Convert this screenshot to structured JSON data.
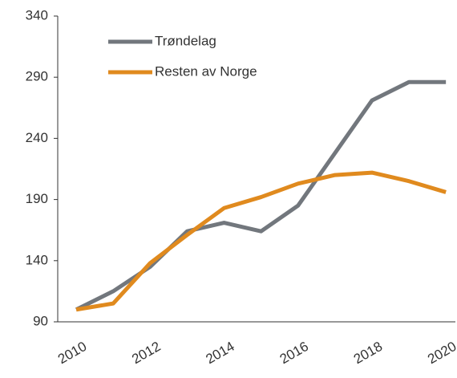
{
  "chart_data": {
    "type": "line",
    "x": [
      2010,
      2011,
      2012,
      2013,
      2014,
      2015,
      2016,
      2017,
      2018,
      2019,
      2020
    ],
    "series": [
      {
        "name": "Trøndelag",
        "color": "#72777d",
        "values": [
          100,
          115,
          135,
          164,
          171,
          164,
          185,
          228,
          271,
          286,
          286
        ]
      },
      {
        "name": "Resten av Norge",
        "color": "#e08a1e",
        "values": [
          100,
          105,
          138,
          161,
          183,
          192,
          203,
          210,
          212,
          205,
          196
        ]
      }
    ],
    "xlim": [
      2009.5,
      2020.3
    ],
    "xticks": [
      2010,
      2012,
      2014,
      2016,
      2018,
      2020
    ],
    "ylim": [
      90,
      340
    ],
    "yticks": [
      90,
      140,
      190,
      240,
      290,
      340
    ],
    "grid": false,
    "legend": "upper left"
  }
}
